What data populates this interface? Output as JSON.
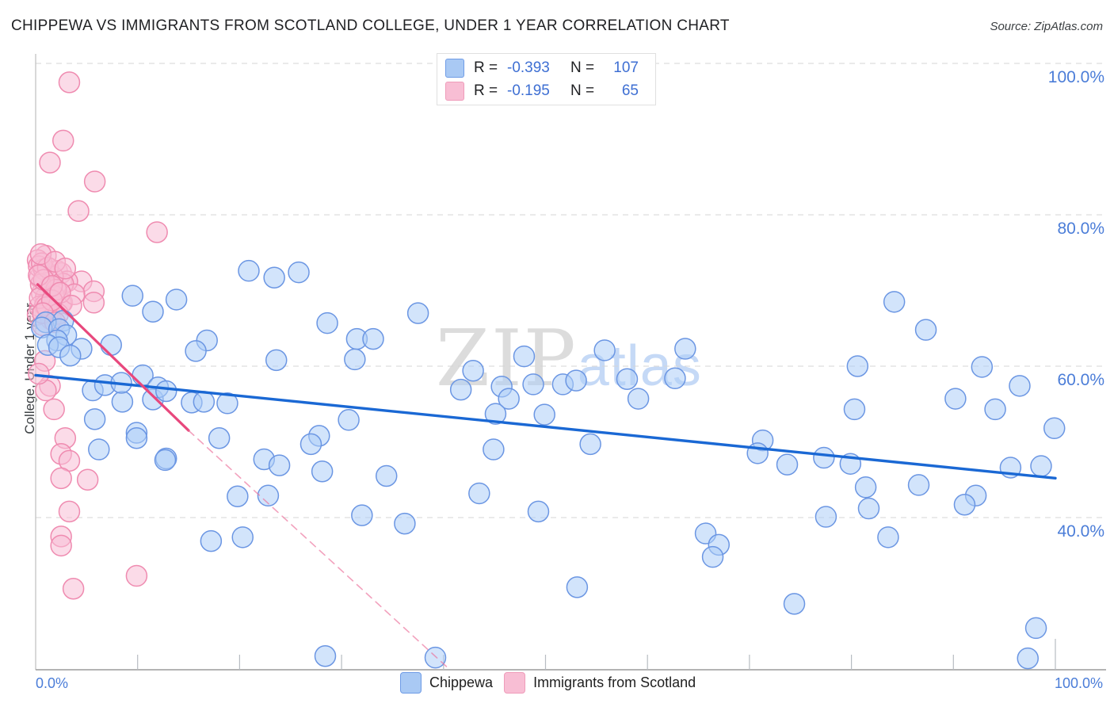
{
  "header": {
    "title": "CHIPPEWA VS IMMIGRANTS FROM SCOTLAND COLLEGE, UNDER 1 YEAR CORRELATION CHART",
    "source": "Source: ZipAtlas.com"
  },
  "watermark": {
    "zip": "ZIP",
    "atlas": "atlas"
  },
  "stats_legend": {
    "rows": [
      {
        "series": "Chippewa",
        "r_label": "R =",
        "r_value": "-0.393",
        "n_label": "N =",
        "n_value": "107"
      },
      {
        "series": "Immigrants from Scotland",
        "r_label": "R =",
        "r_value": "-0.195",
        "n_label": "N =",
        "n_value": "65"
      }
    ]
  },
  "bottom_legend": {
    "items": [
      {
        "label": "Chippewa",
        "color": "#a9c9f4"
      },
      {
        "label": "Immigrants from Scotland",
        "color": "#f8bed4"
      }
    ]
  },
  "axes": {
    "ylabel": "College, Under 1 year",
    "x_left_label": "0.0%",
    "x_right_label": "100.0%"
  },
  "chart_data": {
    "type": "scatter",
    "title": "CHIPPEWA VS IMMIGRANTS FROM SCOTLAND COLLEGE, UNDER 1 YEAR CORRELATION CHART",
    "xlabel": "",
    "ylabel": "College, Under 1 year",
    "xlim": [
      0,
      105
    ],
    "ylim": [
      20,
      102
    ],
    "grid": "horizontal-dashed",
    "legend_position": "bottom",
    "y_ticks": [
      {
        "value": 100,
        "label": "100.0%"
      },
      {
        "value": 80,
        "label": "80.0%"
      },
      {
        "value": 60,
        "label": "60.0%"
      },
      {
        "value": 40,
        "label": "40.0%"
      }
    ],
    "x_ticks": [
      10,
      20,
      30,
      40,
      50,
      60,
      70,
      80,
      90,
      100
    ],
    "series": [
      {
        "name": "Chippewa",
        "R": -0.393,
        "N": 107,
        "fill": "rgba(173,205,248,0.55)",
        "stroke": "#6b96e3",
        "points": [
          [
            9.5,
            69.3
          ],
          [
            13.8,
            68.8
          ],
          [
            11.5,
            67.2
          ],
          [
            16.8,
            63.4
          ],
          [
            15.7,
            62.0
          ],
          [
            7.4,
            62.8
          ],
          [
            2.7,
            66.0
          ],
          [
            1.0,
            65.8
          ],
          [
            0.6,
            65.1
          ],
          [
            2.3,
            64.9
          ],
          [
            3.0,
            64.1
          ],
          [
            2.1,
            63.4
          ],
          [
            1.2,
            62.8
          ],
          [
            2.3,
            62.5
          ],
          [
            4.5,
            62.3
          ],
          [
            3.4,
            61.4
          ],
          [
            5.6,
            56.8
          ],
          [
            6.8,
            57.5
          ],
          [
            8.5,
            55.3
          ],
          [
            5.8,
            53.0
          ],
          [
            6.2,
            49.0
          ],
          [
            9.9,
            51.2
          ],
          [
            10.5,
            58.8
          ],
          [
            8.4,
            57.8
          ],
          [
            11.5,
            55.6
          ],
          [
            12.0,
            57.2
          ],
          [
            12.8,
            56.7
          ],
          [
            15.3,
            55.2
          ],
          [
            12.8,
            47.8
          ],
          [
            16.5,
            55.3
          ],
          [
            20.9,
            72.6
          ],
          [
            23.4,
            71.7
          ],
          [
            25.8,
            72.4
          ],
          [
            28.6,
            65.7
          ],
          [
            31.5,
            63.6
          ],
          [
            33.1,
            63.6
          ],
          [
            37.5,
            67.0
          ],
          [
            23.6,
            60.8
          ],
          [
            31.3,
            60.9
          ],
          [
            9.9,
            50.5
          ],
          [
            18.0,
            50.5
          ],
          [
            12.7,
            47.6
          ],
          [
            22.4,
            47.7
          ],
          [
            23.9,
            46.9
          ],
          [
            28.1,
            46.1
          ],
          [
            19.8,
            42.8
          ],
          [
            22.8,
            42.9
          ],
          [
            17.2,
            36.9
          ],
          [
            20.3,
            37.4
          ],
          [
            32.0,
            40.3
          ],
          [
            18.8,
            55.1
          ],
          [
            30.7,
            52.9
          ],
          [
            27.8,
            50.8
          ],
          [
            27.0,
            49.7
          ],
          [
            28.4,
            21.7
          ],
          [
            39.2,
            21.5
          ],
          [
            47.9,
            61.3
          ],
          [
            42.9,
            59.4
          ],
          [
            55.8,
            62.1
          ],
          [
            48.8,
            57.6
          ],
          [
            51.7,
            57.6
          ],
          [
            53.0,
            58.1
          ],
          [
            41.7,
            56.9
          ],
          [
            45.7,
            57.3
          ],
          [
            46.4,
            55.7
          ],
          [
            45.1,
            53.7
          ],
          [
            49.9,
            53.6
          ],
          [
            54.4,
            49.7
          ],
          [
            44.9,
            49.0
          ],
          [
            34.4,
            45.5
          ],
          [
            43.5,
            43.2
          ],
          [
            36.2,
            39.2
          ],
          [
            49.3,
            40.8
          ],
          [
            53.1,
            30.8
          ],
          [
            65.7,
            37.9
          ],
          [
            67.0,
            36.4
          ],
          [
            66.4,
            34.8
          ],
          [
            63.7,
            62.3
          ],
          [
            58.0,
            58.3
          ],
          [
            62.7,
            58.4
          ],
          [
            59.1,
            55.7
          ],
          [
            80.6,
            60.0
          ],
          [
            80.3,
            54.3
          ],
          [
            71.3,
            50.2
          ],
          [
            70.8,
            48.5
          ],
          [
            73.7,
            47.0
          ],
          [
            77.3,
            47.9
          ],
          [
            79.9,
            47.1
          ],
          [
            81.4,
            44.0
          ],
          [
            84.2,
            68.5
          ],
          [
            87.3,
            64.8
          ],
          [
            92.8,
            59.9
          ],
          [
            96.5,
            57.4
          ],
          [
            90.2,
            55.7
          ],
          [
            94.1,
            54.3
          ],
          [
            99.9,
            51.8
          ],
          [
            95.6,
            46.6
          ],
          [
            98.6,
            46.8
          ],
          [
            86.6,
            44.3
          ],
          [
            92.2,
            42.9
          ],
          [
            91.1,
            41.7
          ],
          [
            81.7,
            41.2
          ],
          [
            77.5,
            40.1
          ],
          [
            83.6,
            37.4
          ],
          [
            74.4,
            28.6
          ],
          [
            98.1,
            25.4
          ],
          [
            97.3,
            21.4
          ]
        ]
      },
      {
        "name": "Immigrants from Scotland",
        "R": -0.195,
        "N": 65,
        "fill": "rgba(247,189,213,0.55)",
        "stroke": "#ef8bb0",
        "points": [
          [
            3.3,
            97.5
          ],
          [
            2.7,
            89.8
          ],
          [
            1.4,
            86.9
          ],
          [
            5.8,
            84.4
          ],
          [
            4.2,
            80.5
          ],
          [
            11.9,
            77.7
          ],
          [
            1.0,
            74.6
          ],
          [
            0.2,
            74.0
          ],
          [
            2.1,
            72.6
          ],
          [
            2.5,
            72.3
          ],
          [
            0.4,
            71.7
          ],
          [
            4.5,
            71.2
          ],
          [
            3.1,
            71.2
          ],
          [
            5.7,
            69.9
          ],
          [
            1.3,
            70.4
          ],
          [
            0.6,
            69.6
          ],
          [
            1.0,
            69.1
          ],
          [
            5.7,
            68.4
          ],
          [
            2.6,
            68.4
          ],
          [
            0.4,
            67.9
          ],
          [
            1.3,
            67.3
          ],
          [
            2.5,
            68.3
          ],
          [
            2.7,
            70.9
          ],
          [
            0.3,
            73.2
          ],
          [
            0.8,
            72.8
          ],
          [
            1.7,
            71.8
          ],
          [
            0.5,
            70.8
          ],
          [
            1.8,
            69.3
          ],
          [
            0.9,
            68.0
          ],
          [
            3.8,
            69.5
          ],
          [
            0.2,
            66.8
          ],
          [
            1.5,
            66.2
          ],
          [
            0.7,
            65.4
          ],
          [
            0.6,
            73.6
          ],
          [
            1.2,
            73.0
          ],
          [
            2.0,
            70.1
          ],
          [
            0.4,
            69.0
          ],
          [
            1.1,
            67.8
          ],
          [
            2.2,
            66.9
          ],
          [
            0.8,
            71.4
          ],
          [
            1.6,
            68.7
          ],
          [
            0.5,
            74.8
          ],
          [
            1.9,
            73.8
          ],
          [
            2.9,
            72.9
          ],
          [
            0.3,
            72.0
          ],
          [
            1.6,
            70.6
          ],
          [
            2.4,
            69.7
          ],
          [
            0.7,
            67.0
          ],
          [
            1.9,
            65.8
          ],
          [
            3.5,
            68.0
          ],
          [
            1.4,
            57.4
          ],
          [
            1.0,
            56.8
          ],
          [
            1.8,
            54.3
          ],
          [
            0.9,
            60.7
          ],
          [
            0.3,
            59.0
          ],
          [
            2.9,
            50.5
          ],
          [
            2.5,
            48.4
          ],
          [
            3.3,
            47.5
          ],
          [
            2.5,
            45.2
          ],
          [
            5.1,
            45.0
          ],
          [
            3.3,
            40.8
          ],
          [
            2.5,
            37.5
          ],
          [
            2.5,
            36.3
          ],
          [
            9.9,
            32.3
          ],
          [
            3.7,
            30.6
          ]
        ]
      }
    ],
    "trend_lines": [
      {
        "series": "Chippewa",
        "style": "solid",
        "color": "#1a68d4",
        "width": 3.4,
        "points": [
          [
            0,
            58.8
          ],
          [
            100,
            45.2
          ]
        ]
      },
      {
        "series": "Immigrants from Scotland",
        "style": "solid",
        "color": "#e8487d",
        "width": 3.2,
        "points": [
          [
            0.2,
            70.8
          ],
          [
            15.0,
            51.5
          ]
        ]
      },
      {
        "series": "Immigrants from Scotland",
        "style": "dashed",
        "color": "#ec6f9a",
        "width": 1.6,
        "points": [
          [
            15.0,
            51.5
          ],
          [
            40.3,
            20.3
          ]
        ]
      }
    ]
  }
}
